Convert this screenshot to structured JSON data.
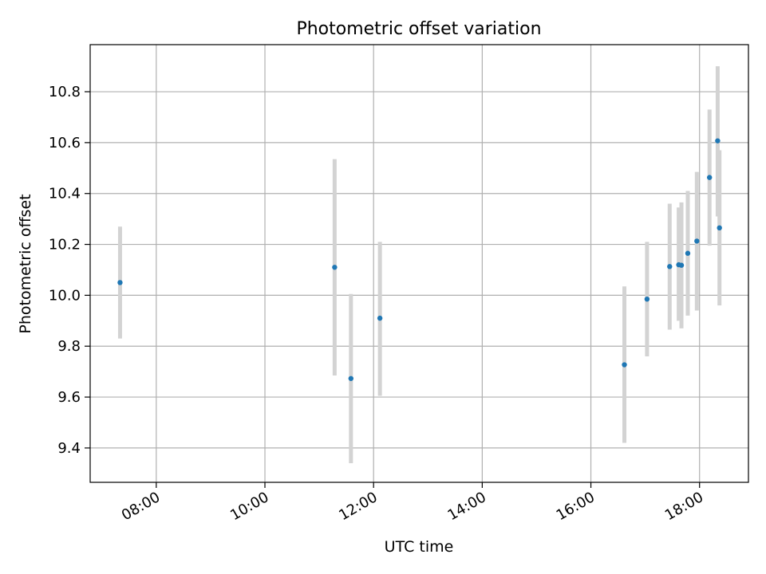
{
  "chart_data": {
    "type": "scatter",
    "title": "Photometric offset variation",
    "xlabel": "UTC time",
    "ylabel": "Photometric offset",
    "x_ticks": [
      "08:00",
      "10:00",
      "12:00",
      "14:00",
      "16:00",
      "18:00"
    ],
    "y_ticks": [
      "9.4",
      "9.6",
      "9.8",
      "10.0",
      "10.2",
      "10.4",
      "10.6",
      "10.8"
    ],
    "xlim": [
      "06:47",
      "18:54"
    ],
    "ylim": [
      9.265,
      10.985
    ],
    "grid": true,
    "series": [
      {
        "points": [
          {
            "x": "07:20",
            "y": 10.05,
            "ylow": 9.83,
            "yhigh": 10.27
          },
          {
            "x": "11:17",
            "y": 10.11,
            "ylow": 9.685,
            "yhigh": 10.535
          },
          {
            "x": "11:35",
            "y": 9.673,
            "ylow": 9.34,
            "yhigh": 10.005
          },
          {
            "x": "12:07",
            "y": 9.91,
            "ylow": 9.605,
            "yhigh": 10.21
          },
          {
            "x": "16:37",
            "y": 9.727,
            "ylow": 9.42,
            "yhigh": 10.035
          },
          {
            "x": "17:02",
            "y": 9.985,
            "ylow": 9.76,
            "yhigh": 10.21
          },
          {
            "x": "17:27",
            "y": 10.113,
            "ylow": 9.865,
            "yhigh": 10.36
          },
          {
            "x": "17:37",
            "y": 10.12,
            "ylow": 9.9,
            "yhigh": 10.345
          },
          {
            "x": "17:40",
            "y": 10.118,
            "ylow": 9.87,
            "yhigh": 10.365
          },
          {
            "x": "17:47",
            "y": 10.165,
            "ylow": 9.92,
            "yhigh": 10.41
          },
          {
            "x": "17:57",
            "y": 10.213,
            "ylow": 9.94,
            "yhigh": 10.485
          },
          {
            "x": "18:11",
            "y": 10.463,
            "ylow": 10.195,
            "yhigh": 10.73
          },
          {
            "x": "18:20",
            "y": 10.607,
            "ylow": 10.31,
            "yhigh": 10.9
          },
          {
            "x": "18:22",
            "y": 10.265,
            "ylow": 9.96,
            "yhigh": 10.57
          }
        ]
      }
    ],
    "colors": {
      "marker": "#1f77b4",
      "errorbar": "#d3d3d3",
      "grid": "#b0b0b0"
    }
  }
}
